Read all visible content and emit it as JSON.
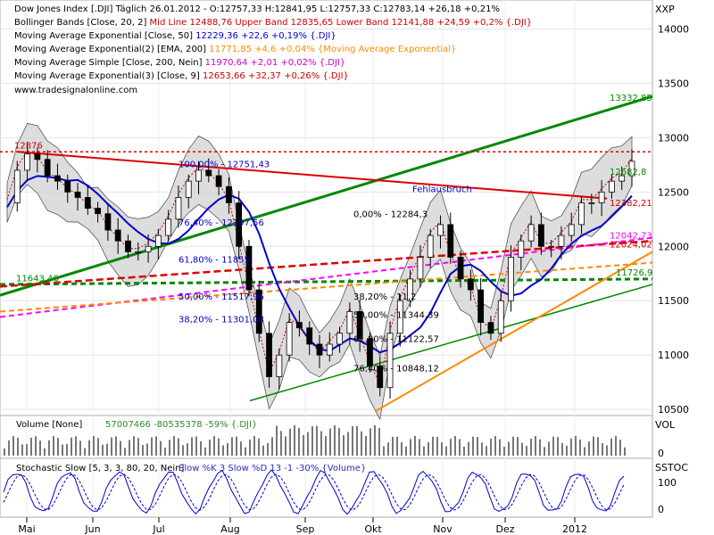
{
  "legend": [
    {
      "name": "Dow Jones Index [.DJI]  Täglich",
      "vals": "26.01.2012 - O:12757,33 H:12841,95 L:12757,33 C:12783,14 +26,18 +0,21%",
      "color": "#000000"
    },
    {
      "name": "Bollinger Bands [Close, 20, 2]",
      "vals": "Mid Line 12488,76 Upper Band 12835,65 Lower Band 12141,88 +24,59 +0,2% {.DJI}",
      "color": "#cc0000"
    },
    {
      "name": "Moving Average Exponential [Close, 50]",
      "vals": "12229,36 +22,6 +0,19% {.DJI}",
      "color": "#0000cc"
    },
    {
      "name": "Moving Average Exponential(2) [EMA, 200]",
      "vals": "11771,85 +4,6 +0,04% {Moving Average Exponential}",
      "color": "#ff8c00"
    },
    {
      "name": "Moving Average Simple [Close, 200, Nein]",
      "vals": "11970,64 +2,01 +0,02% {.DJI}",
      "color": "#cc00cc"
    },
    {
      "name": "Moving Average Exponential(3) [Close, 9]",
      "vals": "12653,66 +32,37 +0,26% {.DJI}",
      "color": "#cc0000"
    }
  ],
  "website": "www.tradesignalonline.com",
  "panels": {
    "price_label": "XXP",
    "volume_label": "VOL",
    "stoch_label": "SSTOC",
    "volume_title": "Volume [None]",
    "volume_vals": "57007466  -80535378  -59% {.DJI}",
    "stoch_title": "Stochastic Slow [5, 3, 3, 80, 20, Nein]",
    "stoch_vals": "Slow %K 3  Slow %D 13  -1  -30% {Volume}"
  },
  "colors": {
    "upper_trend": "#008800",
    "resistance": "#dd0000",
    "ema200": "#ff8800",
    "sma200": "#ff00ff",
    "ema50": "#0000cc",
    "channel": "#008800"
  },
  "annotations": {
    "high_label": "12876",
    "low_support": "11643,46",
    "upper_trend_end": "13332,85",
    "fehlausbruch": "Fehlausbruch",
    "fib_top": "0,00% - 12284,3",
    "fib_100": "100,00% - 12751,43",
    "fib_76": "76,40% - 12197,56",
    "fib_61": "61,80% - 11855",
    "fib_50": "50,00% - 11517,96",
    "fib_38": "38,20% - 11301,08",
    "fib2_38": "38,20% - 11,2",
    "fib2_50": "50,00% - 11344,39",
    "fib2_61": "61,80% - 11122,57",
    "fib2_76": "76,40% - 10848,12",
    "right_1": "12682,8",
    "right_2": "12382,21",
    "right_3": "12042,73",
    "right_4": "12024,02",
    "right_5": "11726,9"
  },
  "chart_data": {
    "type": "candlestick",
    "y_ticks": [
      10500,
      11000,
      11500,
      12000,
      12500,
      13000,
      13500,
      14000
    ],
    "ylim": [
      10460,
      14250
    ],
    "x_ticks": [
      "Mai",
      "Jun",
      "Jul",
      "Aug",
      "Sep",
      "Okt",
      "Nov",
      "Dez",
      "2012"
    ],
    "stoch_ticks": [
      "100",
      "0"
    ],
    "vol_ticks": [
      "0"
    ],
    "close_path": [
      12400,
      12700,
      12850,
      12800,
      12650,
      12600,
      12500,
      12450,
      12350,
      12300,
      12150,
      12050,
      11950,
      11950,
      12000,
      12100,
      12250,
      12450,
      12600,
      12700,
      12650,
      12550,
      12400,
      12000,
      11600,
      11200,
      10800,
      11000,
      11300,
      11250,
      11100,
      11000,
      11100,
      11200,
      11400,
      11150,
      10900,
      10700,
      11200,
      11500,
      11700,
      11900,
      12100,
      12200,
      11900,
      11700,
      11600,
      11300,
      11200,
      11500,
      11900,
      12050,
      12200,
      12000,
      12000,
      12100,
      12200,
      12400,
      12400,
      12500,
      12600,
      12650,
      12783
    ]
  }
}
